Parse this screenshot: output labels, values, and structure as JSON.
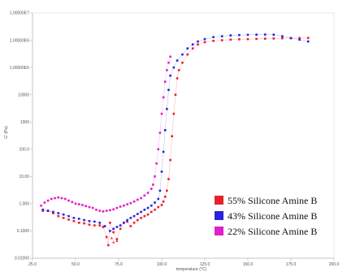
{
  "chart_data": {
    "type": "scatter",
    "title": "",
    "xlabel": "temperature (°C)",
    "ylabel": "G' (Pa)",
    "xlim": [
      25.0,
      200.0
    ],
    "ylim": [
      0.01,
      10000000
    ],
    "y_scale": "log",
    "grid": false,
    "legend_position": "bottom-right",
    "x_ticks": [
      "25.0",
      "50.0",
      "75.0",
      "100.0",
      "125.0",
      "150.0",
      "175.0",
      "200.0"
    ],
    "y_ticks": [
      "0.01000",
      "0.1000",
      "1.000",
      "10.00",
      "100.0",
      "1000",
      "10000",
      "1.00000E5",
      "1.00000E6",
      "1.00000E7"
    ],
    "series": [
      {
        "name": "55% Silicone Amine B",
        "color": "#e8202a",
        "points": [
          [
            31,
            0.55
          ],
          [
            34,
            0.55
          ],
          [
            37,
            0.45
          ],
          [
            40,
            0.35
          ],
          [
            43,
            0.3
          ],
          [
            46,
            0.26
          ],
          [
            49,
            0.23
          ],
          [
            52,
            0.2
          ],
          [
            55,
            0.19
          ],
          [
            58,
            0.17
          ],
          [
            61,
            0.16
          ],
          [
            64,
            0.16
          ],
          [
            66,
            0.14
          ],
          [
            68,
            0.06
          ],
          [
            69,
            0.03
          ],
          [
            70,
            0.2
          ],
          [
            72,
            0.09
          ],
          [
            74,
            0.05
          ],
          [
            76,
            0.12
          ],
          [
            78,
            0.2
          ],
          [
            80,
            0.22
          ],
          [
            82,
            0.15
          ],
          [
            84,
            0.2
          ],
          [
            86,
            0.25
          ],
          [
            88,
            0.3
          ],
          [
            90,
            0.35
          ],
          [
            92,
            0.4
          ],
          [
            94,
            0.5
          ],
          [
            96,
            0.6
          ],
          [
            98,
            0.75
          ],
          [
            100,
            0.9
          ],
          [
            101,
            1.2
          ],
          [
            102,
            1.8
          ],
          [
            103,
            3
          ],
          [
            104,
            8
          ],
          [
            105,
            40
          ],
          [
            106,
            300
          ],
          [
            107,
            2000
          ],
          [
            108,
            10000
          ],
          [
            109,
            40000
          ],
          [
            110,
            80000
          ],
          [
            112,
            150000
          ],
          [
            115,
            300000
          ],
          [
            118,
            500000
          ],
          [
            121,
            700000
          ],
          [
            125,
            850000
          ],
          [
            130,
            950000
          ],
          [
            135,
            1000000
          ],
          [
            140,
            1050000
          ],
          [
            145,
            1080000
          ],
          [
            150,
            1100000
          ],
          [
            155,
            1120000
          ],
          [
            160,
            1140000
          ],
          [
            165,
            1160000
          ],
          [
            170,
            1180000
          ],
          [
            175,
            1190000
          ],
          [
            180,
            1200000
          ],
          [
            185,
            1210000
          ]
        ]
      },
      {
        "name": "43% Silicone Amine B",
        "color": "#2a22e0",
        "points": [
          [
            31,
            0.6
          ],
          [
            34,
            0.55
          ],
          [
            37,
            0.5
          ],
          [
            40,
            0.45
          ],
          [
            43,
            0.4
          ],
          [
            46,
            0.35
          ],
          [
            49,
            0.3
          ],
          [
            52,
            0.28
          ],
          [
            55,
            0.25
          ],
          [
            58,
            0.23
          ],
          [
            61,
            0.22
          ],
          [
            64,
            0.2
          ],
          [
            67,
            0.15
          ],
          [
            70,
            0.1
          ],
          [
            72,
            0.12
          ],
          [
            74,
            0.14
          ],
          [
            76,
            0.16
          ],
          [
            78,
            0.2
          ],
          [
            80,
            0.25
          ],
          [
            82,
            0.3
          ],
          [
            84,
            0.35
          ],
          [
            86,
            0.42
          ],
          [
            88,
            0.5
          ],
          [
            90,
            0.6
          ],
          [
            92,
            0.7
          ],
          [
            94,
            0.85
          ],
          [
            96,
            1.1
          ],
          [
            98,
            1.5
          ],
          [
            99,
            3
          ],
          [
            100,
            15
          ],
          [
            101,
            80
          ],
          [
            102,
            500
          ],
          [
            103,
            3000
          ],
          [
            104,
            15000
          ],
          [
            105,
            50000
          ],
          [
            107,
            100000
          ],
          [
            109,
            180000
          ],
          [
            112,
            300000
          ],
          [
            115,
            500000
          ],
          [
            118,
            700000
          ],
          [
            121,
            900000
          ],
          [
            125,
            1100000
          ],
          [
            130,
            1300000
          ],
          [
            135,
            1400000
          ],
          [
            140,
            1500000
          ],
          [
            145,
            1550000
          ],
          [
            150,
            1580000
          ],
          [
            155,
            1600000
          ],
          [
            160,
            1620000
          ],
          [
            165,
            1600000
          ],
          [
            170,
            1400000
          ],
          [
            175,
            1200000
          ],
          [
            180,
            1050000
          ],
          [
            185,
            900000
          ]
        ]
      },
      {
        "name": "22% Silicone Amine B",
        "color": "#e020c8",
        "points": [
          [
            30,
            0.85
          ],
          [
            32,
            1.1
          ],
          [
            34,
            1.3
          ],
          [
            36,
            1.5
          ],
          [
            38,
            1.6
          ],
          [
            40,
            1.7
          ],
          [
            42,
            1.6
          ],
          [
            44,
            1.5
          ],
          [
            46,
            1.3
          ],
          [
            48,
            1.15
          ],
          [
            50,
            1.0
          ],
          [
            52,
            0.95
          ],
          [
            54,
            0.9
          ],
          [
            56,
            0.82
          ],
          [
            58,
            0.75
          ],
          [
            60,
            0.7
          ],
          [
            62,
            0.6
          ],
          [
            64,
            0.55
          ],
          [
            66,
            0.52
          ],
          [
            68,
            0.55
          ],
          [
            70,
            0.58
          ],
          [
            72,
            0.62
          ],
          [
            74,
            0.7
          ],
          [
            76,
            0.78
          ],
          [
            78,
            0.85
          ],
          [
            80,
            0.95
          ],
          [
            82,
            1.05
          ],
          [
            84,
            1.2
          ],
          [
            86,
            1.4
          ],
          [
            88,
            1.6
          ],
          [
            90,
            2.0
          ],
          [
            92,
            2.5
          ],
          [
            94,
            3.5
          ],
          [
            95,
            5
          ],
          [
            96,
            10
          ],
          [
            97,
            30
          ],
          [
            98,
            100
          ],
          [
            99,
            400
          ],
          [
            100,
            2000
          ],
          [
            101,
            8000
          ],
          [
            102,
            30000
          ],
          [
            103,
            80000
          ],
          [
            104,
            150000
          ],
          [
            105,
            250000
          ]
        ]
      }
    ],
    "annotations": [
      {
        "x": 72,
        "y": 0.035,
        "text": "▲"
      },
      {
        "x": 71,
        "y": 0.05,
        "text": "▲"
      },
      {
        "x": 74,
        "y": 0.04,
        "text": "▲"
      }
    ]
  }
}
